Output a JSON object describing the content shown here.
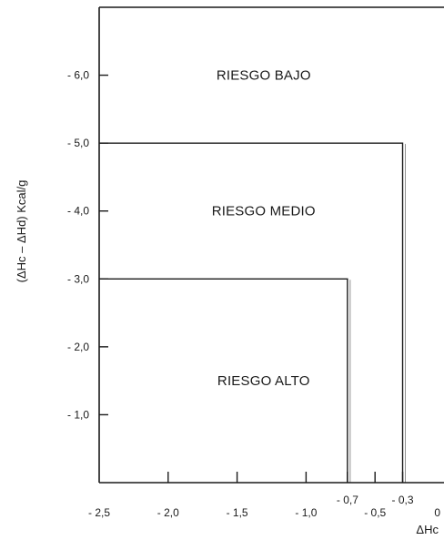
{
  "chart_data": {
    "type": "area",
    "title": "",
    "xlabel": "ΔHc",
    "ylabel": "(ΔHc – ΔHd) Kcal/g",
    "xlim": [
      -2.5,
      0
    ],
    "ylim": [
      0,
      7
    ],
    "x_ticks": [
      {
        "value": -2.5,
        "label": "- 2,5"
      },
      {
        "value": -2.0,
        "label": "- 2,0"
      },
      {
        "value": -1.5,
        "label": "- 1,5"
      },
      {
        "value": -1.0,
        "label": "- 1,0"
      },
      {
        "value": -0.7,
        "label": "- 0,7"
      },
      {
        "value": -0.5,
        "label": "- 0,5"
      },
      {
        "value": -0.3,
        "label": "- 0,3"
      },
      {
        "value": 0,
        "label": "0"
      }
    ],
    "y_ticks": [
      {
        "value": 1.0,
        "label": "- 1,0"
      },
      {
        "value": 2.0,
        "label": "- 2,0"
      },
      {
        "value": 3.0,
        "label": "- 3,0"
      },
      {
        "value": 4.0,
        "label": "- 4,0"
      },
      {
        "value": 5.0,
        "label": "- 5,0"
      },
      {
        "value": 6.0,
        "label": "- 6,0"
      }
    ],
    "boundaries": [
      {
        "name": "alto-medio",
        "x": -0.7,
        "y": 3.0
      },
      {
        "name": "medio-bajo",
        "x": -0.3,
        "y": 5.0
      }
    ],
    "regions": [
      {
        "label": "RIESGO BAJO",
        "x": -1.4,
        "y": 6.0
      },
      {
        "label": "RIESGO MEDIO",
        "x": -1.4,
        "y": 4.0
      },
      {
        "label": "RIESGO ALTO",
        "x": -1.4,
        "y": 1.5
      }
    ],
    "grid": false
  }
}
